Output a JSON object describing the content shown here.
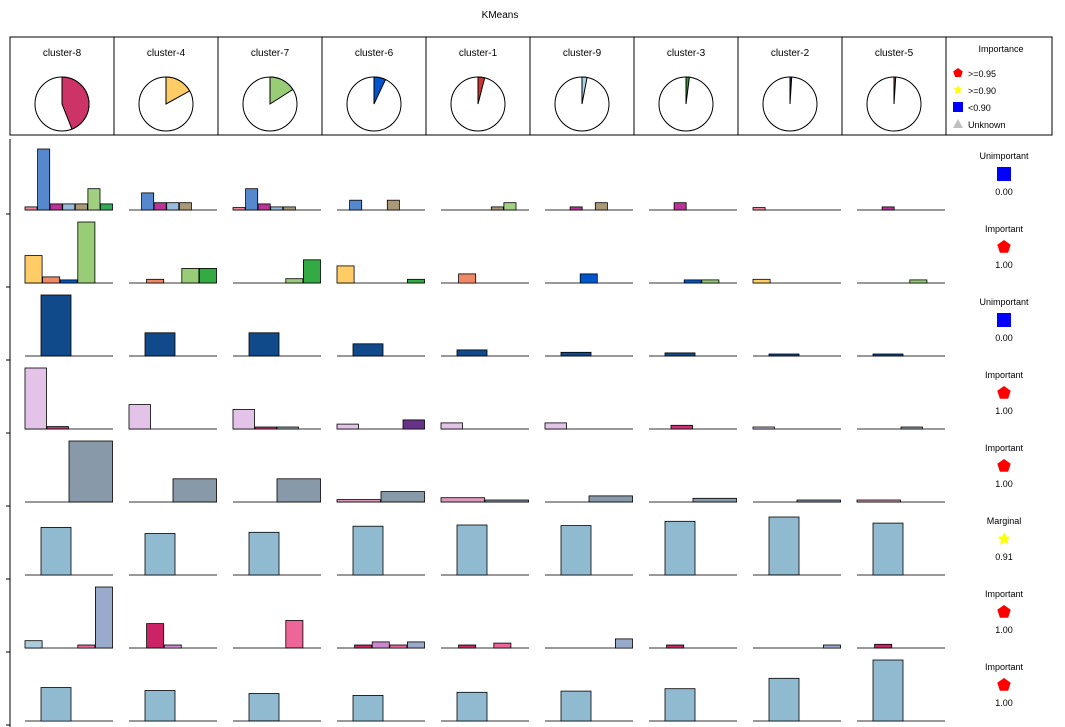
{
  "title": "KMeans",
  "legend": {
    "title": "Importance",
    "items": [
      {
        "label": ">=0.95",
        "shape": "pentagon",
        "color": "#ff0000"
      },
      {
        "label": ">=0.90",
        "shape": "star",
        "color": "#ffff00"
      },
      {
        "label": "<0.90",
        "shape": "square",
        "color": "#0000ff"
      },
      {
        "label": "Unknown",
        "shape": "triangle",
        "color": "#c0c0c0"
      }
    ]
  },
  "colors": {
    "pie_slices": [
      "#cc3366",
      "#ffcc66",
      "#99cc77",
      "#0055cc",
      "#cc3333",
      "#aad4ee",
      "#339933",
      "#223366",
      "#996655"
    ]
  },
  "chart_data": {
    "type": "bar",
    "clusters": [
      {
        "label": "cluster-8",
        "share": 0.44
      },
      {
        "label": "cluster-4",
        "share": 0.17
      },
      {
        "label": "cluster-7",
        "share": 0.16
      },
      {
        "label": "cluster-6",
        "share": 0.07
      },
      {
        "label": "cluster-1",
        "share": 0.04
      },
      {
        "label": "cluster-9",
        "share": 0.03
      },
      {
        "label": "cluster-3",
        "share": 0.02
      },
      {
        "label": "cluster-2",
        "share": 0.01
      },
      {
        "label": "cluster-5",
        "share": 0.01
      }
    ],
    "rows": [
      {
        "importance_label": "Unimportant",
        "importance_value": "0.00",
        "marker": "square",
        "colors": [
          "#ee8899",
          "#5588cc",
          "#bb3399",
          "#99bbdd",
          "#aa9977",
          "#a0d080",
          "#33aa55"
        ],
        "values": [
          [
            0.05,
            1.0,
            0.1,
            0.1,
            0.1,
            0.35,
            0.1
          ],
          [
            0,
            0.28,
            0.12,
            0.12,
            0.12,
            0,
            0
          ],
          [
            0.04,
            0.35,
            0.1,
            0.05,
            0.05,
            0,
            0
          ],
          [
            0,
            0.16,
            0,
            0,
            0.16,
            0,
            0
          ],
          [
            0,
            0,
            0,
            0,
            0.05,
            0.12,
            0
          ],
          [
            0,
            0,
            0.05,
            0,
            0.12,
            0,
            0
          ],
          [
            0,
            0,
            0.12,
            0,
            0,
            0,
            0
          ],
          [
            0.04,
            0,
            0,
            0,
            0,
            0,
            0
          ],
          [
            0,
            0,
            0.05,
            0,
            0,
            0,
            0
          ]
        ]
      },
      {
        "importance_label": "Important",
        "importance_value": "1.00",
        "marker": "pentagon",
        "colors": [
          "#ffcc66",
          "#ee8866",
          "#0055cc",
          "#99cc77",
          "#33aa44"
        ],
        "values": [
          [
            0.45,
            0.1,
            0.05,
            1.0,
            0
          ],
          [
            0,
            0.06,
            0,
            0.24,
            0.24
          ],
          [
            0,
            0,
            0,
            0.07,
            0.38
          ],
          [
            0.28,
            0,
            0,
            0,
            0.06
          ],
          [
            0,
            0.15,
            0,
            0,
            0
          ],
          [
            0,
            0,
            0.15,
            0,
            0
          ],
          [
            0,
            0,
            0.05,
            0.05,
            0
          ],
          [
            0.06,
            0,
            0,
            0,
            0
          ],
          [
            0,
            0,
            0,
            0.05,
            0
          ]
        ]
      },
      {
        "importance_label": "Unimportant",
        "importance_value": "0.00",
        "marker": "square",
        "colors": [
          "#104a8a"
        ],
        "values": [
          [
            1.0
          ],
          [
            0.38
          ],
          [
            0.38
          ],
          [
            0.2
          ],
          [
            0.1
          ],
          [
            0.06
          ],
          [
            0.05
          ],
          [
            0.03
          ],
          [
            0.03
          ]
        ]
      },
      {
        "importance_label": "Important",
        "importance_value": "1.00",
        "marker": "pentagon",
        "colors": [
          "#e3c4e8",
          "#cc3377",
          "#99aabb",
          "#663388"
        ],
        "values": [
          [
            1.0,
            0.04,
            0,
            0
          ],
          [
            0.4,
            0,
            0,
            0
          ],
          [
            0.32,
            0.03,
            0.03,
            0
          ],
          [
            0.08,
            0,
            0,
            0.15
          ],
          [
            0.1,
            0,
            0,
            0
          ],
          [
            0.1,
            0,
            0,
            0
          ],
          [
            0,
            0.06,
            0,
            0
          ],
          [
            0.03,
            0,
            0,
            0
          ],
          [
            0,
            0,
            0.03,
            0
          ]
        ]
      },
      {
        "importance_label": "Important",
        "importance_value": "1.00",
        "marker": "pentagon",
        "colors": [
          "#dd99bb",
          "#8899aa"
        ],
        "values": [
          [
            0,
            1.0
          ],
          [
            0,
            0.38
          ],
          [
            0,
            0.38
          ],
          [
            0.04,
            0.17
          ],
          [
            0.07,
            0.03
          ],
          [
            0,
            0.1
          ],
          [
            0,
            0.06
          ],
          [
            0,
            0.03
          ],
          [
            0.03,
            0
          ]
        ]
      },
      {
        "importance_label": "Marginal",
        "importance_value": "0.91",
        "marker": "star",
        "colors": [
          "#8fbad0"
        ],
        "values": [
          [
            0.78
          ],
          [
            0.68
          ],
          [
            0.7
          ],
          [
            0.8
          ],
          [
            0.82
          ],
          [
            0.81
          ],
          [
            0.88
          ],
          [
            0.95
          ],
          [
            0.85
          ]
        ]
      },
      {
        "importance_label": "Important",
        "importance_value": "1.00",
        "marker": "pentagon",
        "colors": [
          "#aaccdd",
          "#cc2266",
          "#cc88cc",
          "#ee6699",
          "#99aacc"
        ],
        "values": [
          [
            0.12,
            0,
            0,
            0.05,
            1.0
          ],
          [
            0,
            0.4,
            0.05,
            0,
            0
          ],
          [
            0,
            0,
            0,
            0.45,
            0
          ],
          [
            0,
            0.05,
            0.1,
            0.05,
            0.1
          ],
          [
            0,
            0.05,
            0,
            0.08,
            0
          ],
          [
            0,
            0,
            0,
            0,
            0.15
          ],
          [
            0,
            0.05,
            0,
            0,
            0
          ],
          [
            0,
            0,
            0,
            0,
            0.05
          ],
          [
            0,
            0.06,
            0,
            0,
            0
          ]
        ]
      },
      {
        "importance_label": "Important",
        "importance_value": "1.00",
        "marker": "pentagon",
        "colors": [
          "#8fbad0"
        ],
        "values": [
          [
            0.55
          ],
          [
            0.5
          ],
          [
            0.45
          ],
          [
            0.42
          ],
          [
            0.47
          ],
          [
            0.49
          ],
          [
            0.53
          ],
          [
            0.7
          ],
          [
            1.0
          ]
        ]
      }
    ]
  }
}
